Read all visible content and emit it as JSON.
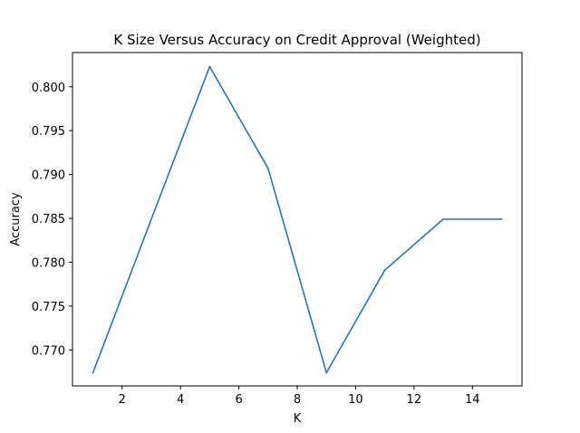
{
  "chart_data": {
    "type": "line",
    "title": "K Size Versus Accuracy on Credit Approval (Weighted)",
    "xlabel": "K",
    "ylabel": "Accuracy",
    "xlim": [
      0.3,
      15.7
    ],
    "ylim": [
      0.7659,
      0.8039
    ],
    "xticks": [
      2,
      4,
      6,
      8,
      10,
      12,
      14
    ],
    "xtick_labels": [
      "2",
      "4",
      "6",
      "8",
      "10",
      "12",
      "14"
    ],
    "yticks": [
      0.77,
      0.775,
      0.78,
      0.785,
      0.79,
      0.795,
      0.8
    ],
    "ytick_labels": [
      "0.770",
      "0.775",
      "0.780",
      "0.785",
      "0.790",
      "0.795",
      "0.800"
    ],
    "grid": false,
    "series": [
      {
        "color": "#1f77b4",
        "x": [
          1,
          3,
          5,
          7,
          9,
          11,
          13,
          15
        ],
        "y": [
          0.7674,
          0.7849,
          0.8023,
          0.7907,
          0.7674,
          0.7791,
          0.7849,
          0.7849
        ]
      }
    ]
  }
}
